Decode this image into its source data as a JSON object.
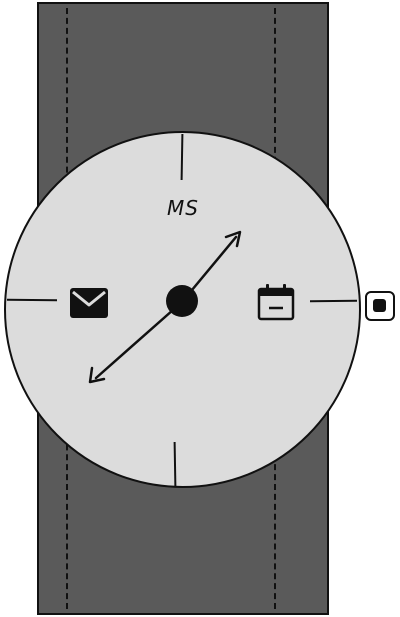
{
  "watch": {
    "brand_label": "MS",
    "colors": {
      "strap": "#5a5a5a",
      "face": "#dcdcdc",
      "ink": "#111111",
      "background": "#ffffff"
    },
    "icons": {
      "left_complication": "mail-icon",
      "right_complication": "calendar-icon",
      "side_button": "crown-button"
    }
  }
}
